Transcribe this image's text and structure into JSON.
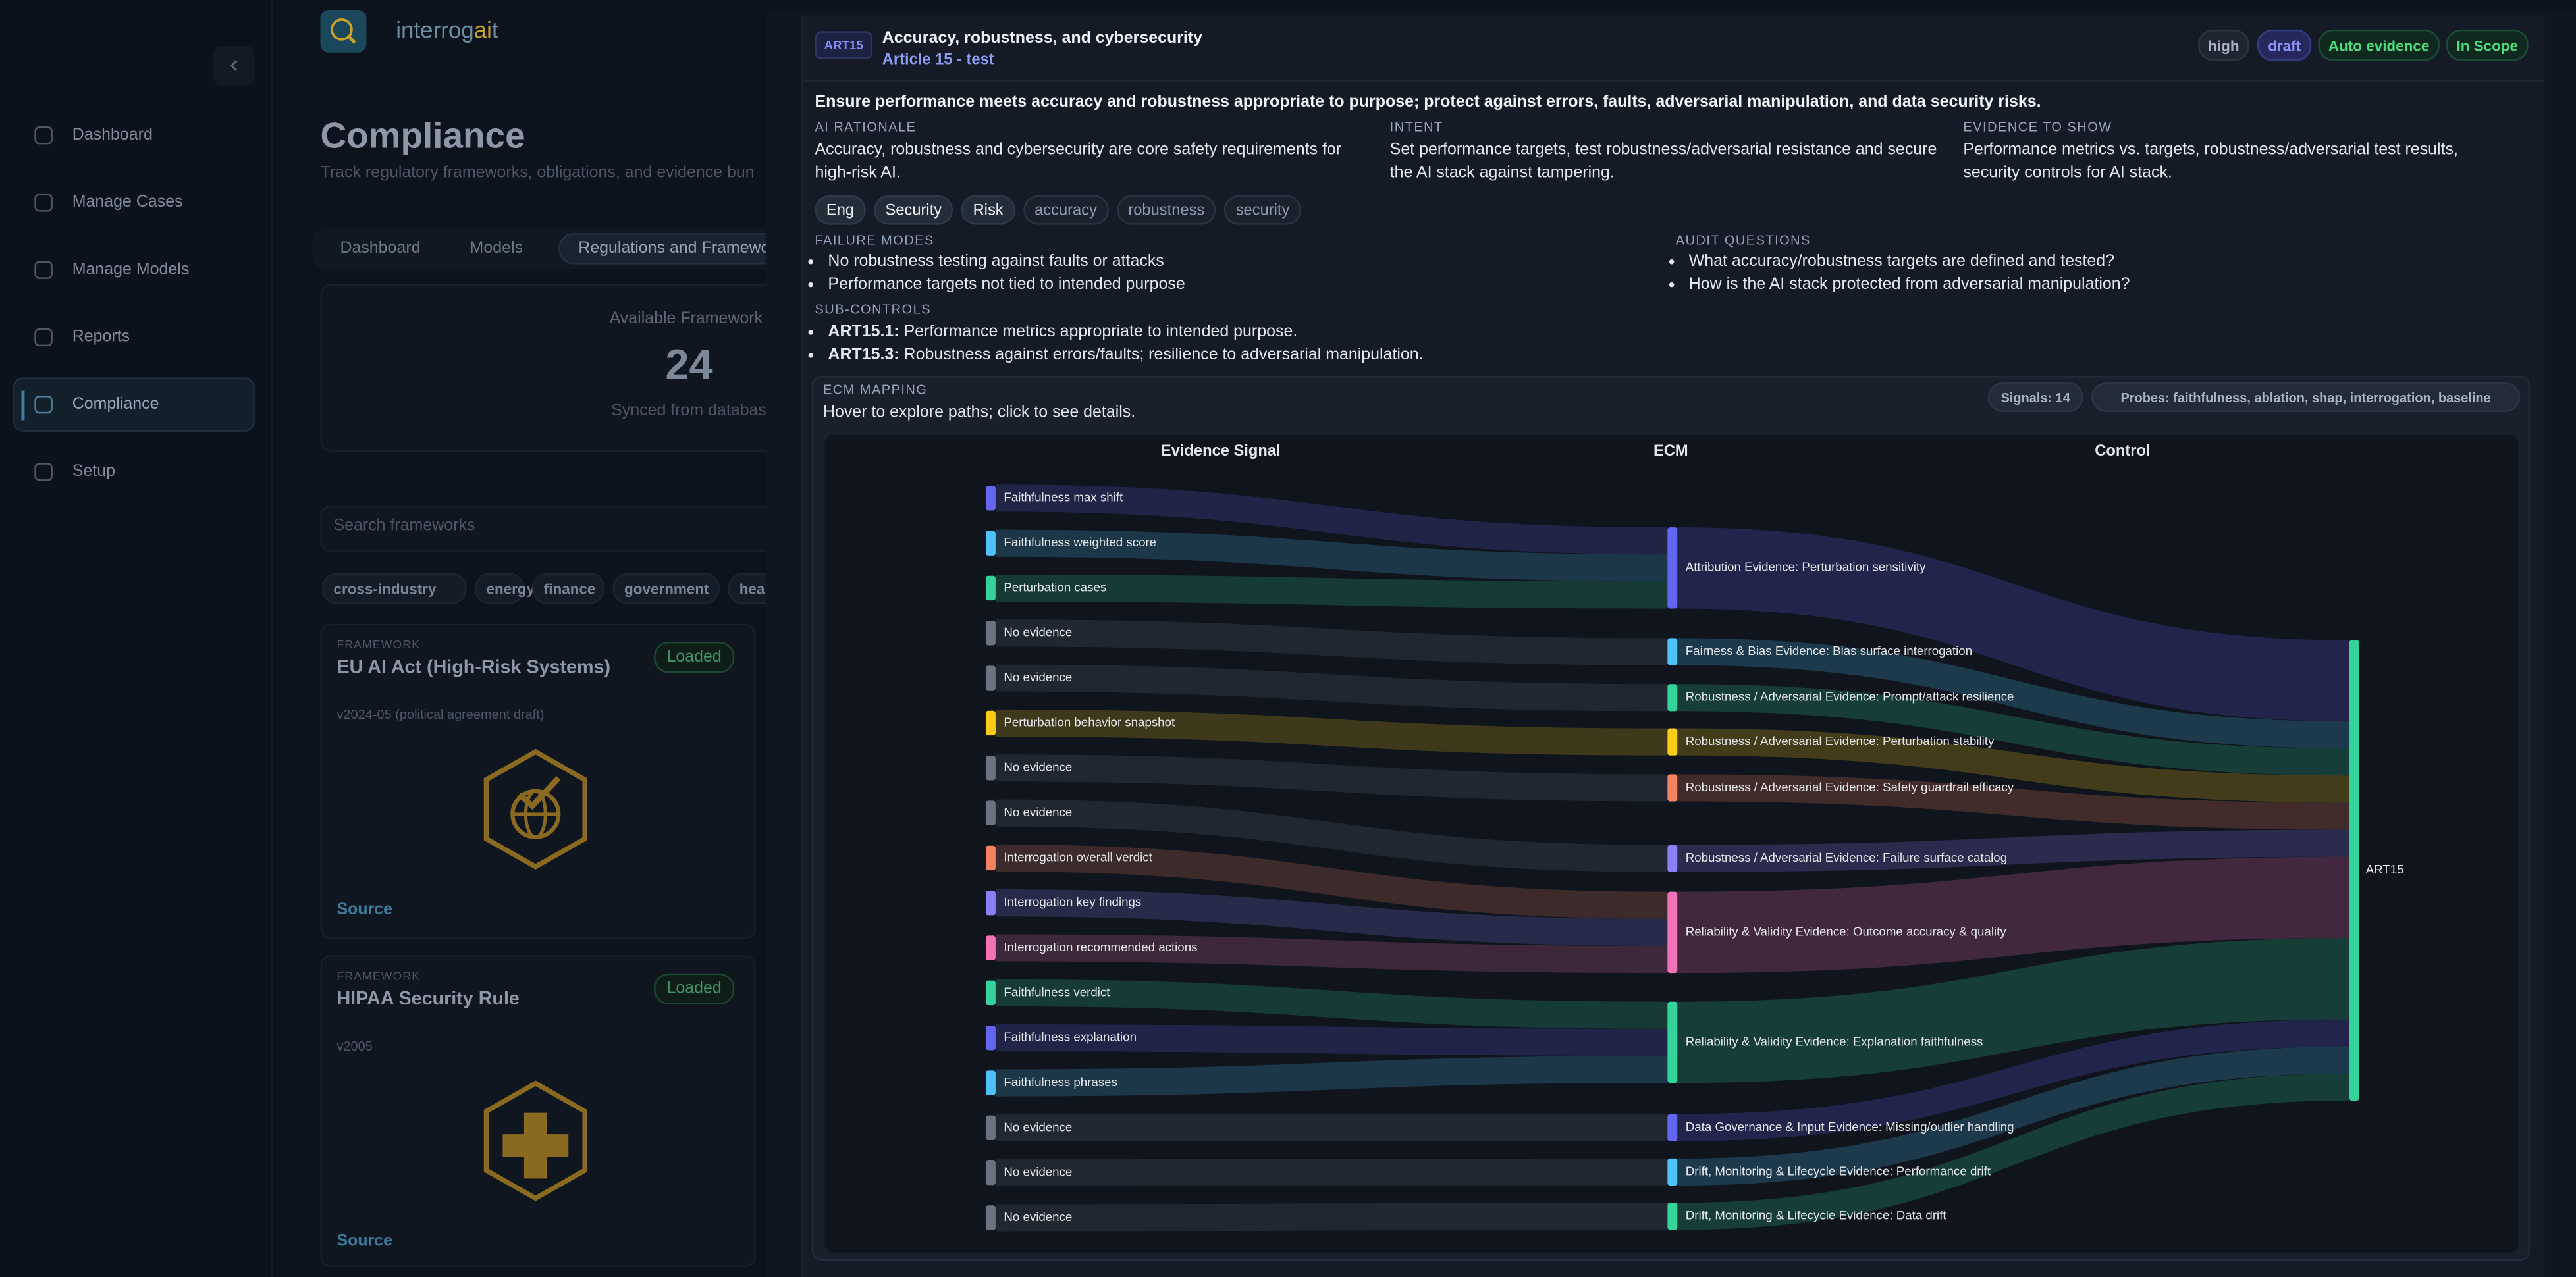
{
  "app": {
    "brand": [
      "interrog",
      "ai",
      "t"
    ]
  },
  "sidebar": {
    "items": [
      "Dashboard",
      "Manage Cases",
      "Manage Models",
      "Reports",
      "Compliance",
      "Setup"
    ],
    "active": 4
  },
  "page": {
    "title": "Compliance",
    "subtitle": "Track regulatory frameworks, obligations, and evidence bun",
    "tabs": [
      "Dashboard",
      "Models",
      "Regulations and Framewo"
    ],
    "active_tab": 2,
    "stat": {
      "label": "Available Framework",
      "value": "24",
      "note": "Synced from databas"
    },
    "search_placeholder": "Search frameworks",
    "filters": [
      "cross-industry",
      "energy",
      "finance",
      "government",
      "hea"
    ],
    "frameworks": [
      {
        "kicker": "FRAMEWORK",
        "name": "EU AI Act (High-Risk Systems)",
        "status": "Loaded",
        "version": "v2024-05 (political agreement draft)",
        "link": "Source"
      },
      {
        "kicker": "FRAMEWORK",
        "name": "HIPAA Security Rule",
        "status": "Loaded",
        "version": "v2005",
        "link": "Source"
      }
    ]
  },
  "panel": {
    "code": "ART15",
    "title": "Accuracy, robustness, and cybersecurity",
    "subtitle": "Article 15 - test",
    "badges": [
      {
        "text": "high",
        "tone": "neutral"
      },
      {
        "text": "draft",
        "tone": "indigo"
      },
      {
        "text": "Auto evidence",
        "tone": "green"
      },
      {
        "text": "In Scope",
        "tone": "green"
      }
    ],
    "summary": "Ensure performance meets accuracy and robustness appropriate to purpose; protect against errors, faults, adversarial manipulation, and data security risks.",
    "columns": [
      {
        "label": "AI RATIONALE",
        "text": "Accuracy, robustness and cybersecurity are core safety requirements for high-risk AI."
      },
      {
        "label": "INTENT",
        "text": "Set performance targets, test robustness/adversarial resistance and secure the AI stack against tampering."
      },
      {
        "label": "EVIDENCE TO SHOW",
        "text": "Performance metrics vs. targets, robustness/adversarial test results, security controls for AI stack."
      }
    ],
    "tags": {
      "primary": [
        "Eng",
        "Security",
        "Risk"
      ],
      "secondary": [
        "accuracy",
        "robustness",
        "security"
      ]
    },
    "failure_modes": {
      "label": "FAILURE MODES",
      "items": [
        "No robustness testing against faults or attacks",
        "Performance targets not tied to intended purpose"
      ]
    },
    "audit_questions": {
      "label": "AUDIT QUESTIONS",
      "items": [
        "What accuracy/robustness targets are defined and tested?",
        "How is the AI stack protected from adversarial manipulation?"
      ]
    },
    "sub_controls": {
      "label": "SUB-CONTROLS",
      "items": [
        {
          "id": "ART15.1:",
          "text": "Performance metrics appropriate to intended purpose."
        },
        {
          "id": "ART15.3:",
          "text": "Robustness against errors/faults; resilience to adversarial manipulation."
        }
      ]
    },
    "ecm": {
      "label": "ECM MAPPING",
      "hint": "Hover to explore paths; click to see details.",
      "signals": "Signals: 14",
      "probes": "Probes: faithfulness, ablation, shap, interrogation, baseline",
      "columns": [
        "Evidence Signal",
        "ECM",
        "Control"
      ],
      "sources": [
        {
          "label": "Faithfulness max shift",
          "color": "#6366f1",
          "ecm": 0
        },
        {
          "label": "Faithfulness weighted score",
          "color": "#4fc3f7",
          "ecm": 0
        },
        {
          "label": "Perturbation cases",
          "color": "#34d399",
          "ecm": 0
        },
        {
          "label": "No evidence",
          "color": "#6b7280",
          "ecm": 1
        },
        {
          "label": "No evidence",
          "color": "#6b7280",
          "ecm": 2
        },
        {
          "label": "Perturbation behavior snapshot",
          "color": "#facc15",
          "ecm": 3
        },
        {
          "label": "No evidence",
          "color": "#6b7280",
          "ecm": 4
        },
        {
          "label": "No evidence",
          "color": "#6b7280",
          "ecm": 5
        },
        {
          "label": "Interrogation overall verdict",
          "color": "#f4845f",
          "ecm": 6
        },
        {
          "label": "Interrogation key findings",
          "color": "#8b80f9",
          "ecm": 6
        },
        {
          "label": "Interrogation recommended actions",
          "color": "#f472b6",
          "ecm": 6
        },
        {
          "label": "Faithfulness verdict",
          "color": "#34d399",
          "ecm": 7
        },
        {
          "label": "Faithfulness explanation",
          "color": "#6366f1",
          "ecm": 7
        },
        {
          "label": "Faithfulness phrases",
          "color": "#4fc3f7",
          "ecm": 7
        },
        {
          "label": "No evidence",
          "color": "#6b7280",
          "ecm": 8
        },
        {
          "label": "No evidence",
          "color": "#6b7280",
          "ecm": 9
        },
        {
          "label": "No evidence",
          "color": "#6b7280",
          "ecm": 10
        }
      ],
      "ecms": [
        {
          "label": "Attribution Evidence: Perturbation sensitivity",
          "color": "#6366f1"
        },
        {
          "label": "Fairness & Bias Evidence: Bias surface interrogation",
          "color": "#4fc3f7"
        },
        {
          "label": "Robustness / Adversarial Evidence: Prompt/attack resilience",
          "color": "#34d399"
        },
        {
          "label": "Robustness / Adversarial Evidence: Perturbation stability",
          "color": "#facc15"
        },
        {
          "label": "Robustness / Adversarial Evidence: Safety guardrail efficacy",
          "color": "#f4845f"
        },
        {
          "label": "Robustness / Adversarial Evidence: Failure surface catalog",
          "color": "#8b80f9"
        },
        {
          "label": "Reliability & Validity Evidence: Outcome accuracy & quality",
          "color": "#f472b6"
        },
        {
          "label": "Reliability & Validity Evidence: Explanation faithfulness",
          "color": "#34d399"
        },
        {
          "label": "Data Governance & Input Evidence: Missing/outlier handling",
          "color": "#6366f1"
        },
        {
          "label": "Drift, Monitoring & Lifecycle Evidence: Performance drift",
          "color": "#4fc3f7"
        },
        {
          "label": "Drift, Monitoring & Lifecycle Evidence: Data drift",
          "color": "#34d399"
        }
      ],
      "control": {
        "label": "ART15",
        "color": "#34d399"
      }
    }
  }
}
